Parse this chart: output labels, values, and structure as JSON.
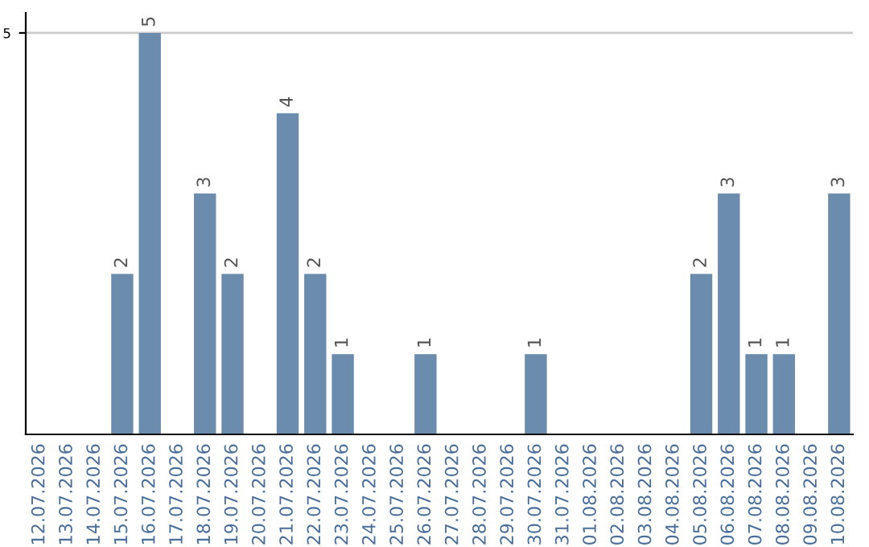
{
  "chart_data": {
    "type": "bar",
    "categories": [
      "12.07.2026",
      "13.07.2026",
      "14.07.2026",
      "15.07.2026",
      "16.07.2026",
      "17.07.2026",
      "18.07.2026",
      "19.07.2026",
      "20.07.2026",
      "21.07.2026",
      "22.07.2026",
      "23.07.2026",
      "24.07.2026",
      "25.07.2026",
      "26.07.2026",
      "27.07.2026",
      "28.07.2026",
      "29.07.2026",
      "30.07.2026",
      "31.07.2026",
      "01.08.2026",
      "02.08.2026",
      "03.08.2026",
      "04.08.2026",
      "05.08.2026",
      "06.08.2026",
      "07.08.2026",
      "08.08.2026",
      "09.08.2026",
      "10.08.2026"
    ],
    "values": [
      null,
      null,
      null,
      2,
      5,
      null,
      3,
      2,
      null,
      4,
      2,
      1,
      null,
      null,
      1,
      null,
      null,
      null,
      1,
      null,
      null,
      null,
      null,
      null,
      2,
      3,
      1,
      1,
      null,
      3
    ],
    "color": "#6b8cad",
    "ylim": [
      0,
      5.25
    ],
    "yticks": [
      5
    ],
    "grid": "y",
    "data_labels": true
  }
}
